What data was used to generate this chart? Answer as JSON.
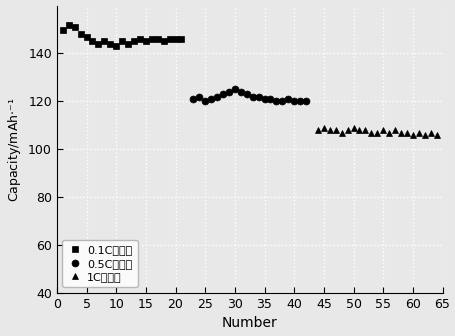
{
  "series1": {
    "x": [
      1,
      2,
      3,
      4,
      5,
      6,
      7,
      8,
      9,
      10,
      11,
      12,
      13,
      14,
      15,
      16,
      17,
      18,
      19,
      20,
      21
    ],
    "y": [
      150,
      152,
      151,
      148,
      147,
      145,
      144,
      145,
      144,
      143,
      145,
      144,
      145,
      146,
      145,
      146,
      146,
      145,
      146,
      146,
      146
    ],
    "marker": "s",
    "label": "0.1C充放电"
  },
  "series2": {
    "x": [
      23,
      24,
      25,
      26,
      27,
      28,
      29,
      30,
      31,
      32,
      33,
      34,
      35,
      36,
      37,
      38,
      39,
      40,
      41,
      42
    ],
    "y": [
      121,
      122,
      120,
      121,
      122,
      123,
      124,
      125,
      124,
      123,
      122,
      122,
      121,
      121,
      120,
      120,
      121,
      120,
      120,
      120
    ],
    "marker": "o",
    "label": "0.5C充放电"
  },
  "series3": {
    "x": [
      44,
      45,
      46,
      47,
      48,
      49,
      50,
      51,
      52,
      53,
      54,
      55,
      56,
      57,
      58,
      59,
      60,
      61,
      62,
      63,
      64
    ],
    "y": [
      108,
      109,
      108,
      108,
      107,
      108,
      109,
      108,
      108,
      107,
      107,
      108,
      107,
      108,
      107,
      107,
      106,
      107,
      106,
      107,
      106
    ],
    "marker": "^",
    "label": "1C充放电"
  },
  "xlabel": "Number",
  "ylabel": "Capacity/mAh·⁻¹",
  "xlim": [
    0,
    65
  ],
  "ylim": [
    40,
    160
  ],
  "yticks": [
    40,
    60,
    80,
    100,
    120,
    140
  ],
  "xticks": [
    0,
    5,
    10,
    15,
    20,
    25,
    30,
    35,
    40,
    45,
    50,
    55,
    60,
    65
  ],
  "marker_size": 5,
  "color": "black",
  "background_color": "#e8e8e8",
  "plot_bg_color": "#e8e8e8",
  "legend_loc": "lower left",
  "grid_color": "#ffffff",
  "grid_linestyle": ":",
  "grid_linewidth": 1.0
}
